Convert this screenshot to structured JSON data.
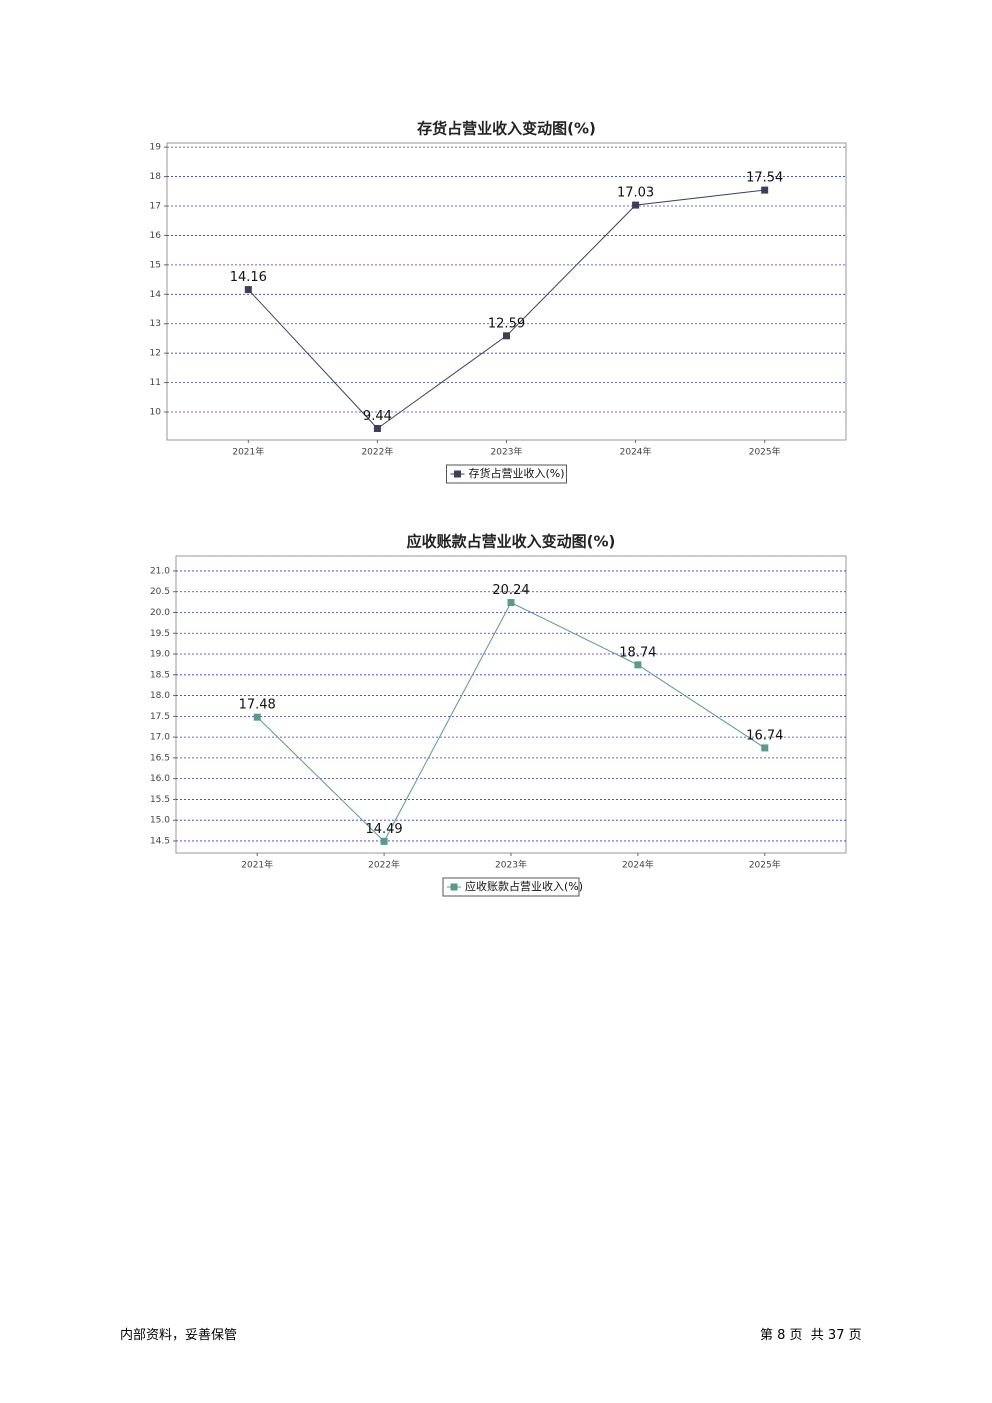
{
  "chart_data": [
    {
      "type": "line",
      "title": "存货占营业收入变动图(%)",
      "categories": [
        "2021年",
        "2022年",
        "2023年",
        "2024年",
        "2025年"
      ],
      "series": [
        {
          "name": "存货占营业收入(%)",
          "color": "#3d3d5c",
          "values": [
            14.16,
            9.44,
            12.59,
            17.03,
            17.54
          ]
        }
      ],
      "ylim": [
        9.05,
        19.14
      ],
      "yticks": [
        10,
        11,
        12,
        13,
        14,
        15,
        16,
        17,
        18,
        19
      ],
      "grid": true,
      "legend": "bottom"
    },
    {
      "type": "line",
      "title": "应收账款占营业收入变动图(%)",
      "categories": [
        "2021年",
        "2022年",
        "2023年",
        "2024年",
        "2025年"
      ],
      "series": [
        {
          "name": "应收账款占营业收入(%)",
          "color": "#5a9a8c",
          "values": [
            17.48,
            14.49,
            20.24,
            18.74,
            16.74
          ]
        }
      ],
      "ylim": [
        14.21,
        21.36
      ],
      "yticks": [
        14.5,
        {
          "value": 15,
          "label": "15.0"
        },
        15.5,
        {
          "value": 16,
          "label": "16.0"
        },
        16.5,
        {
          "value": 17,
          "label": "17.0"
        },
        17.5,
        {
          "value": 18,
          "label": "18.0"
        },
        18.5,
        {
          "value": 19,
          "label": "19.0"
        },
        19.5,
        {
          "value": 20,
          "label": "20.0"
        },
        20.5,
        {
          "value": 21,
          "label": "21.0"
        }
      ],
      "grid": true,
      "legend": "bottom"
    }
  ],
  "footer": {
    "left": "内部资料，妥善保管",
    "right": "第 8 页  共 37 页"
  }
}
